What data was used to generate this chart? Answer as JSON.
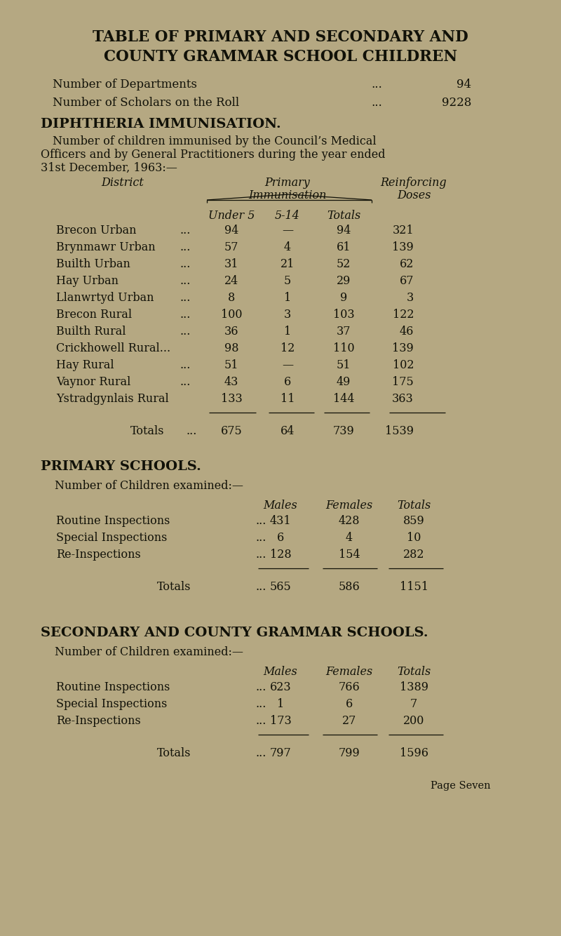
{
  "bg_color": "#b5a882",
  "title_line1": "TABLE OF PRIMARY AND SECONDARY AND",
  "title_line2": "COUNTY GRAMMAR SCHOOL CHILDREN",
  "dept_label": "Number of Departments",
  "dept_dots": "...",
  "dept_value": "94",
  "scholars_label": "Number of Scholars on the Roll",
  "scholars_dots": "...",
  "scholars_value": "9228",
  "diph_heading": "DIPHTHERIA IMMUNISATION.",
  "diph_para_1": "Number of children immunised by the Council’s Medical",
  "diph_para_2": "Officers and by General Practitioners during the year ended",
  "diph_para_3": "31st December, 1963:—",
  "col_district": "District",
  "col_primary_1": "Primary",
  "col_primary_2": "Immunisation",
  "col_reinforcing_1": "Reinforcing",
  "col_reinforcing_2": "Doses",
  "col_under5": "Under 5",
  "col_514": "5-14",
  "col_totals_hdr": "Totals",
  "districts": [
    [
      "Brecon Urban",
      "...",
      "94",
      "—",
      "94",
      "321"
    ],
    [
      "Brynmawr Urban",
      "...",
      "57",
      "4",
      "61",
      "139"
    ],
    [
      "Builth Urban",
      "...",
      "31",
      "21",
      "52",
      "62"
    ],
    [
      "Hay Urban",
      "...",
      "24",
      "5",
      "29",
      "67"
    ],
    [
      "Llanwrtyd Urban",
      "...",
      "8",
      "1",
      "9",
      "3"
    ],
    [
      "Brecon Rural",
      "...",
      "100",
      "3",
      "103",
      "122"
    ],
    [
      "Builth Rural",
      "...",
      "36",
      "1",
      "37",
      "46"
    ],
    [
      "Crickhowell Rural...",
      "",
      "98",
      "12",
      "110",
      "139"
    ],
    [
      "Hay Rural",
      "...",
      "51",
      "—",
      "51",
      "102"
    ],
    [
      "Vaynor Rural",
      "...",
      "43",
      "6",
      "49",
      "175"
    ],
    [
      "Ystradgynlais Rural",
      "",
      "133",
      "11",
      "144",
      "363"
    ]
  ],
  "totals_label": "Totals",
  "totals_dots": "...",
  "totals_vals": [
    "675",
    "64",
    "739",
    "1539"
  ],
  "primary_heading": "PRIMARY SCHOOLS.",
  "primary_sub": "Number of Children examined:—",
  "primary_rows": [
    [
      "Routine Inspections",
      "...",
      "431",
      "428",
      "859"
    ],
    [
      "Special Inspections",
      "...",
      "6",
      "4",
      "10"
    ],
    [
      "Re-Inspections",
      "...",
      "128",
      "154",
      "282"
    ]
  ],
  "primary_totals_label": "Totals",
  "primary_totals_dots": "...",
  "primary_totals": [
    "565",
    "586",
    "1151"
  ],
  "secondary_heading": "SECONDARY AND COUNTY GRAMMAR SCHOOLS.",
  "secondary_sub": "Number of Children examined:—",
  "secondary_rows": [
    [
      "Routine Inspections",
      "...",
      "623",
      "766",
      "1389"
    ],
    [
      "Special Inspections",
      "...",
      "1",
      "6",
      "7"
    ],
    [
      "Re-Inspections",
      "...",
      "173",
      "27",
      "200"
    ]
  ],
  "secondary_totals_label": "Totals",
  "secondary_totals_dots": "...",
  "secondary_totals": [
    "797",
    "799",
    "1596"
  ],
  "page_label": "Page Seven",
  "text_color": "#111108",
  "line_color": "#111108"
}
